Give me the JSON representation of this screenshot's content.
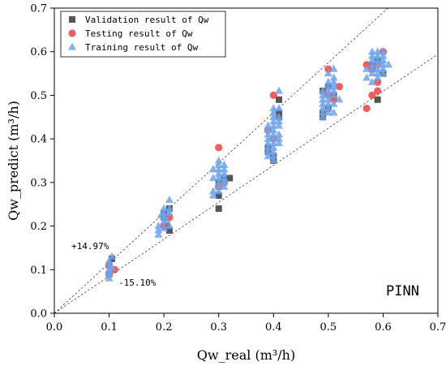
{
  "chart_data": {
    "type": "scatter",
    "xlabel": "Qw_real (m³/h)",
    "ylabel": "Qw_predict (m³/h)",
    "xlim": [
      0.0,
      0.7
    ],
    "ylim": [
      0.0,
      0.7
    ],
    "xticks": [
      "0.0",
      "0.1",
      "0.2",
      "0.3",
      "0.4",
      "0.5",
      "0.6",
      "0.7"
    ],
    "yticks": [
      "0.0",
      "0.1",
      "0.2",
      "0.3",
      "0.4",
      "0.5",
      "0.6",
      "0.7"
    ],
    "grid": false,
    "legend_position": "top-left",
    "corner_label": "PINN",
    "reference_lines": [
      {
        "label": "+14.97%",
        "slope": 1.1497
      },
      {
        "label": "-15.10%",
        "slope": 0.849
      }
    ],
    "series": [
      {
        "name": "Validation result of Qw",
        "marker": "square",
        "color": "#555555",
        "points": [
          [
            0.1,
            0.09
          ],
          [
            0.1,
            0.11
          ],
          [
            0.105,
            0.125
          ],
          [
            0.2,
            0.23
          ],
          [
            0.21,
            0.24
          ],
          [
            0.205,
            0.2
          ],
          [
            0.21,
            0.19
          ],
          [
            0.2,
            0.22
          ],
          [
            0.3,
            0.24
          ],
          [
            0.3,
            0.27
          ],
          [
            0.31,
            0.31
          ],
          [
            0.3,
            0.3
          ],
          [
            0.32,
            0.31
          ],
          [
            0.39,
            0.37
          ],
          [
            0.4,
            0.36
          ],
          [
            0.41,
            0.45
          ],
          [
            0.41,
            0.49
          ],
          [
            0.4,
            0.35
          ],
          [
            0.41,
            0.46
          ],
          [
            0.39,
            0.38
          ],
          [
            0.49,
            0.45
          ],
          [
            0.49,
            0.46
          ],
          [
            0.5,
            0.52
          ],
          [
            0.51,
            0.5
          ],
          [
            0.5,
            0.47
          ],
          [
            0.49,
            0.51
          ],
          [
            0.58,
            0.56
          ],
          [
            0.59,
            0.58
          ],
          [
            0.6,
            0.55
          ],
          [
            0.59,
            0.49
          ],
          [
            0.58,
            0.57
          ]
        ]
      },
      {
        "name": "Testing result of Qw",
        "marker": "circle",
        "color": "#ee4d4d",
        "points": [
          [
            0.1,
            0.09
          ],
          [
            0.1,
            0.11
          ],
          [
            0.11,
            0.1
          ],
          [
            0.2,
            0.2
          ],
          [
            0.21,
            0.22
          ],
          [
            0.3,
            0.38
          ],
          [
            0.3,
            0.29
          ],
          [
            0.31,
            0.3
          ],
          [
            0.4,
            0.5
          ],
          [
            0.4,
            0.4
          ],
          [
            0.39,
            0.42
          ],
          [
            0.5,
            0.56
          ],
          [
            0.51,
            0.49
          ],
          [
            0.5,
            0.5
          ],
          [
            0.52,
            0.52
          ],
          [
            0.57,
            0.47
          ],
          [
            0.58,
            0.5
          ],
          [
            0.58,
            0.56
          ],
          [
            0.59,
            0.53
          ],
          [
            0.59,
            0.57
          ],
          [
            0.6,
            0.6
          ],
          [
            0.57,
            0.57
          ],
          [
            0.59,
            0.51
          ]
        ]
      },
      {
        "name": "Training result of Qw",
        "marker": "triangle",
        "color": "#6fa3ea",
        "points": [
          [
            0.1,
            0.08
          ],
          [
            0.1,
            0.09
          ],
          [
            0.1,
            0.1
          ],
          [
            0.1,
            0.11
          ],
          [
            0.1,
            0.12
          ],
          [
            0.105,
            0.13
          ],
          [
            0.1,
            0.095
          ],
          [
            0.105,
            0.105
          ],
          [
            0.19,
            0.18
          ],
          [
            0.19,
            0.19
          ],
          [
            0.19,
            0.2
          ],
          [
            0.2,
            0.21
          ],
          [
            0.2,
            0.22
          ],
          [
            0.2,
            0.23
          ],
          [
            0.21,
            0.24
          ],
          [
            0.21,
            0.26
          ],
          [
            0.2,
            0.195
          ],
          [
            0.205,
            0.215
          ],
          [
            0.21,
            0.2
          ],
          [
            0.195,
            0.225
          ],
          [
            0.2,
            0.24
          ],
          [
            0.21,
            0.23
          ],
          [
            0.29,
            0.27
          ],
          [
            0.29,
            0.28
          ],
          [
            0.3,
            0.29
          ],
          [
            0.3,
            0.3
          ],
          [
            0.3,
            0.31
          ],
          [
            0.3,
            0.32
          ],
          [
            0.31,
            0.33
          ],
          [
            0.31,
            0.34
          ],
          [
            0.3,
            0.35
          ],
          [
            0.31,
            0.3
          ],
          [
            0.29,
            0.31
          ],
          [
            0.3,
            0.33
          ],
          [
            0.31,
            0.29
          ],
          [
            0.3,
            0.28
          ],
          [
            0.31,
            0.32
          ],
          [
            0.29,
            0.33
          ],
          [
            0.3,
            0.34
          ],
          [
            0.31,
            0.31
          ],
          [
            0.39,
            0.36
          ],
          [
            0.39,
            0.37
          ],
          [
            0.39,
            0.38
          ],
          [
            0.4,
            0.39
          ],
          [
            0.4,
            0.4
          ],
          [
            0.4,
            0.41
          ],
          [
            0.4,
            0.42
          ],
          [
            0.4,
            0.43
          ],
          [
            0.41,
            0.44
          ],
          [
            0.41,
            0.45
          ],
          [
            0.4,
            0.46
          ],
          [
            0.41,
            0.47
          ],
          [
            0.41,
            0.51
          ],
          [
            0.4,
            0.37
          ],
          [
            0.39,
            0.4
          ],
          [
            0.4,
            0.38
          ],
          [
            0.41,
            0.39
          ],
          [
            0.39,
            0.42
          ],
          [
            0.4,
            0.44
          ],
          [
            0.41,
            0.41
          ],
          [
            0.4,
            0.36
          ],
          [
            0.39,
            0.43
          ],
          [
            0.4,
            0.35
          ],
          [
            0.41,
            0.43
          ],
          [
            0.4,
            0.45
          ],
          [
            0.39,
            0.41
          ],
          [
            0.41,
            0.4
          ],
          [
            0.4,
            0.47
          ],
          [
            0.39,
            0.39
          ],
          [
            0.49,
            0.45
          ],
          [
            0.49,
            0.46
          ],
          [
            0.49,
            0.47
          ],
          [
            0.5,
            0.48
          ],
          [
            0.5,
            0.49
          ],
          [
            0.5,
            0.5
          ],
          [
            0.5,
            0.51
          ],
          [
            0.51,
            0.52
          ],
          [
            0.51,
            0.53
          ],
          [
            0.51,
            0.54
          ],
          [
            0.5,
            0.55
          ],
          [
            0.51,
            0.56
          ],
          [
            0.5,
            0.47
          ],
          [
            0.49,
            0.49
          ],
          [
            0.51,
            0.48
          ],
          [
            0.5,
            0.46
          ],
          [
            0.49,
            0.51
          ],
          [
            0.51,
            0.5
          ],
          [
            0.5,
            0.53
          ],
          [
            0.49,
            0.48
          ],
          [
            0.51,
            0.46
          ],
          [
            0.5,
            0.52
          ],
          [
            0.49,
            0.5
          ],
          [
            0.51,
            0.51
          ],
          [
            0.52,
            0.49
          ],
          [
            0.57,
            0.54
          ],
          [
            0.58,
            0.55
          ],
          [
            0.58,
            0.56
          ],
          [
            0.58,
            0.57
          ],
          [
            0.59,
            0.58
          ],
          [
            0.59,
            0.59
          ],
          [
            0.59,
            0.6
          ],
          [
            0.6,
            0.59
          ],
          [
            0.6,
            0.57
          ],
          [
            0.59,
            0.55
          ],
          [
            0.6,
            0.56
          ],
          [
            0.58,
            0.6
          ],
          [
            0.59,
            0.54
          ],
          [
            0.6,
            0.58
          ],
          [
            0.58,
            0.58
          ],
          [
            0.6,
            0.55
          ],
          [
            0.59,
            0.57
          ],
          [
            0.57,
            0.56
          ],
          [
            0.6,
            0.6
          ],
          [
            0.58,
            0.53
          ],
          [
            0.59,
            0.56
          ],
          [
            0.61,
            0.57
          ],
          [
            0.58,
            0.59
          ]
        ]
      }
    ]
  }
}
